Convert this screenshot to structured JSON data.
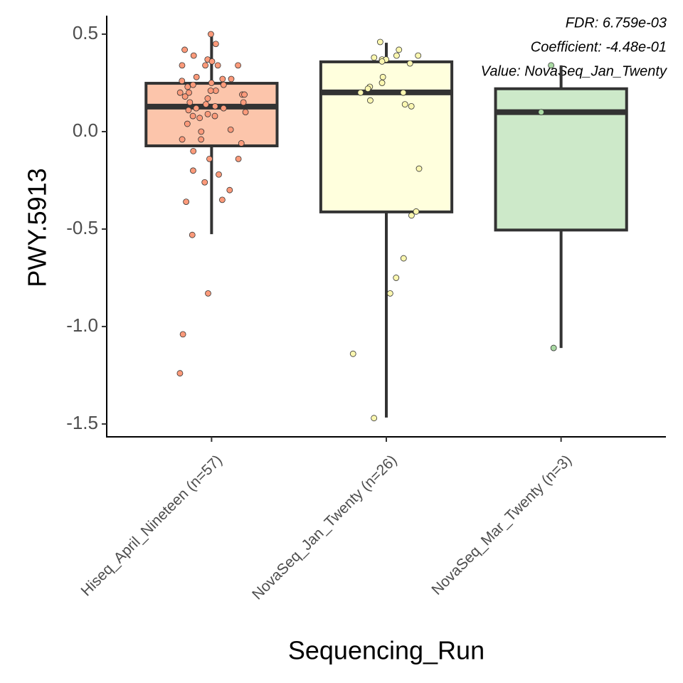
{
  "chart_data": {
    "type": "box",
    "x_label": "Sequencing_Run",
    "y_label": "PWY.5913",
    "annotations": [
      "FDR: 6.759e-03",
      "Coefficient: -4.48e-01",
      "Value: NovaSeq_Jan_Twenty"
    ],
    "categories": [
      "Hiseq_April_Nineteen (n=57)",
      "NovaSeq_Jan_Twenty (n=26)",
      "NovaSeq_Mar_Twenty (n=3)"
    ],
    "colors": [
      "#fcc5ab",
      "#ffffdd",
      "#cde9c9"
    ],
    "point_colors": [
      "#fc9a7a",
      "#fbf7b0",
      "#a9d9a3"
    ],
    "boxes": [
      {
        "whisker_low": -0.526,
        "q1": -0.073,
        "median": 0.128,
        "q3": 0.248,
        "whisker_high": 0.5
      },
      {
        "whisker_low": -1.467,
        "q1": -0.412,
        "median": 0.201,
        "q3": 0.358,
        "whisker_high": 0.456
      },
      {
        "whisker_low": -1.11,
        "q1": -0.505,
        "median": 0.1,
        "q3": 0.22,
        "whisker_high": 0.34
      }
    ],
    "points": [
      [
        0.5,
        0.45,
        0.42,
        0.39,
        0.37,
        0.36,
        0.34,
        0.34,
        0.34,
        0.34,
        0.28,
        0.27,
        0.27,
        0.26,
        0.25,
        0.24,
        0.24,
        0.23,
        0.21,
        0.21,
        0.2,
        0.2,
        0.19,
        0.19,
        0.18,
        0.17,
        0.15,
        0.15,
        0.14,
        0.13,
        0.12,
        0.12,
        0.11,
        0.1,
        0.09,
        0.08,
        0.08,
        0.07,
        0.04,
        0.01,
        0.0,
        -0.04,
        -0.04,
        -0.06,
        -0.1,
        -0.14,
        -0.14,
        -0.2,
        -0.22,
        -0.26,
        -0.3,
        -0.35,
        -0.36,
        -0.53,
        -0.83,
        -1.04,
        -1.24
      ],
      [
        0.46,
        0.42,
        0.39,
        0.39,
        0.38,
        0.37,
        0.37,
        0.36,
        0.35,
        0.28,
        0.25,
        0.23,
        0.22,
        0.2,
        0.2,
        0.16,
        0.14,
        0.13,
        -0.19,
        -0.41,
        -0.43,
        -0.65,
        -0.75,
        -0.83,
        -1.14,
        -1.47
      ],
      [
        0.34,
        0.1,
        -1.11
      ]
    ],
    "ylim": [
      -1.566,
      0.595
    ],
    "yticks": [
      0.5,
      {
        "value": 0,
        "label": "0.0"
      },
      -0.5,
      {
        "value": -1,
        "label": "-1.0"
      },
      -1.5
    ]
  }
}
